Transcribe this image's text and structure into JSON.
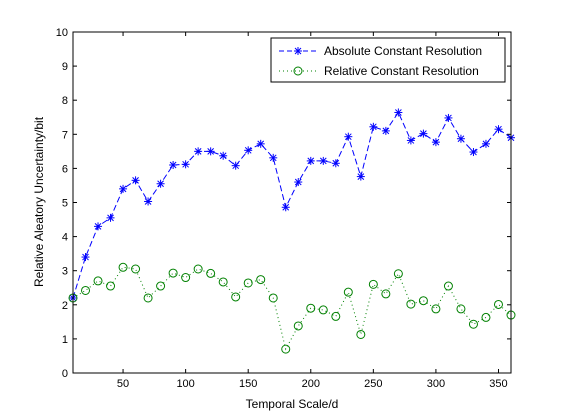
{
  "colors": {
    "background": "#ffffff",
    "axes": "#000000",
    "series_absolute": "#0000ff",
    "series_relative": "#008000"
  },
  "chart_data": {
    "type": "line",
    "title": "",
    "xlabel": "Temporal Scale/d",
    "ylabel": "Relative Aleatory Uncertainty/bit",
    "xlim": [
      10,
      360
    ],
    "ylim": [
      0,
      10
    ],
    "xticks": [
      50,
      100,
      150,
      200,
      250,
      300,
      350
    ],
    "yticks": [
      1,
      2,
      3,
      4,
      5,
      6,
      7,
      8,
      9,
      10
    ],
    "grid": false,
    "legend_position": "top-right",
    "x": [
      10,
      20,
      30,
      40,
      50,
      60,
      70,
      80,
      90,
      100,
      110,
      120,
      130,
      140,
      150,
      160,
      170,
      180,
      190,
      200,
      210,
      220,
      230,
      240,
      250,
      260,
      270,
      280,
      290,
      300,
      310,
      320,
      330,
      340,
      350,
      360
    ],
    "series": [
      {
        "name": "Absolute Constant Resolution",
        "color": "#0000ff",
        "line_style": "dashed",
        "marker": "asterisk",
        "values": [
          2.2,
          3.4,
          4.3,
          4.55,
          5.4,
          5.65,
          5.03,
          5.55,
          6.1,
          6.12,
          6.5,
          6.5,
          6.37,
          6.08,
          6.53,
          6.72,
          6.31,
          4.86,
          5.6,
          6.22,
          6.22,
          6.15,
          6.93,
          5.76,
          7.22,
          7.1,
          7.64,
          6.82,
          7.02,
          6.77,
          7.48,
          6.87,
          6.48,
          6.72,
          7.15,
          6.9
        ]
      },
      {
        "name": "Relative Constant Resolution",
        "color": "#008000",
        "line_style": "dotted",
        "marker": "circle",
        "values": [
          2.2,
          2.42,
          2.7,
          2.55,
          3.1,
          3.05,
          2.2,
          2.55,
          2.93,
          2.8,
          3.05,
          2.92,
          2.67,
          2.23,
          2.64,
          2.74,
          2.2,
          0.7,
          1.38,
          1.9,
          1.85,
          1.66,
          2.37,
          1.13,
          2.6,
          2.32,
          2.91,
          2.02,
          2.12,
          1.88,
          2.55,
          1.88,
          1.43,
          1.63,
          2.01,
          1.7
        ]
      }
    ]
  }
}
